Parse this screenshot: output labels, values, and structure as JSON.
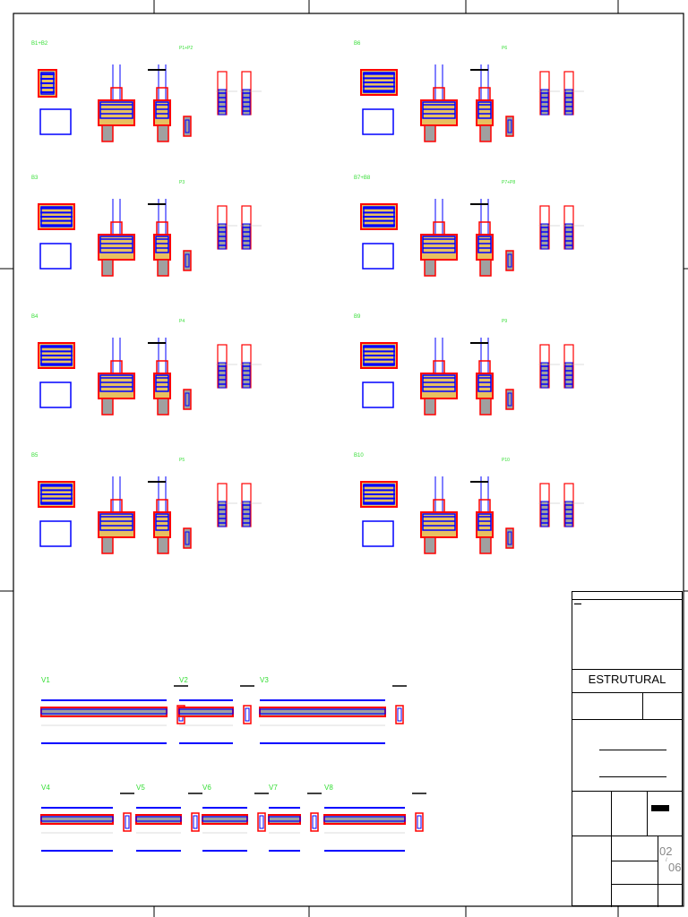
{
  "colors": {
    "rebar": "#0000ff",
    "concrete": "#ff0000",
    "fill": "#e8c060",
    "grey": "#a0a0a0",
    "label": "#33dd33"
  },
  "footings": [
    {
      "label": "B1+B2",
      "col": "P1+P2"
    },
    {
      "label": "B3",
      "col": "P3"
    },
    {
      "label": "B4",
      "col": "P4"
    },
    {
      "label": "B5",
      "col": "P5"
    },
    {
      "label": "B6",
      "col": "P6"
    },
    {
      "label": "B7+B8",
      "col": "P7+P8"
    },
    {
      "label": "B9",
      "col": "P9"
    },
    {
      "label": "B10",
      "col": "P10"
    }
  ],
  "beams": [
    "V1",
    "V2",
    "V3",
    "V4",
    "V5",
    "V6",
    "V7",
    "V8"
  ],
  "title_block": {
    "discipline": "ESTRUTURAL",
    "sheet": "02",
    "total": "06"
  }
}
